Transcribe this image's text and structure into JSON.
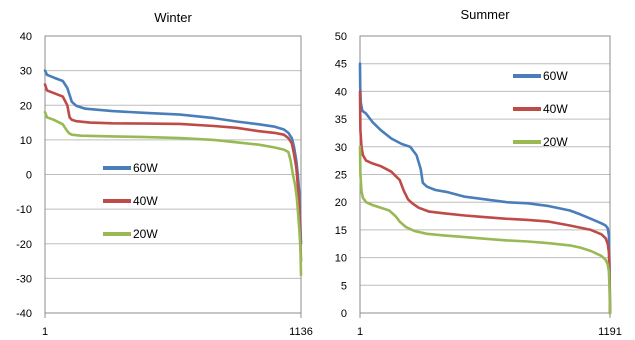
{
  "chart_data": [
    {
      "type": "line",
      "title": "Winter",
      "x_ticks": [
        "1",
        "1136"
      ],
      "y_ticks": [
        40,
        30,
        20,
        10,
        0,
        -10,
        -20,
        -30,
        -40
      ],
      "ylim": [
        -40,
        40
      ],
      "xlim": [
        1,
        1136
      ],
      "grid": true,
      "legend_placement": "left-middle",
      "series": [
        {
          "name": "60W",
          "color": "#4a7ebb",
          "x": [
            1,
            10,
            40,
            80,
            100,
            120,
            140,
            180,
            300,
            450,
            600,
            750,
            850,
            950,
            1020,
            1060,
            1080,
            1095,
            1105,
            1115,
            1122,
            1128,
            1132,
            1136
          ],
          "y": [
            30,
            28.8,
            28,
            27,
            25,
            21,
            19.8,
            19,
            18.3,
            17.8,
            17.3,
            16.3,
            15.3,
            14.5,
            13.8,
            13,
            12,
            10.5,
            8,
            4,
            0,
            -5,
            -12,
            -20
          ]
        },
        {
          "name": "40W",
          "color": "#be4b48",
          "x": [
            1,
            10,
            40,
            80,
            100,
            110,
            120,
            140,
            200,
            300,
            450,
            600,
            750,
            850,
            950,
            1020,
            1060,
            1080,
            1095,
            1105,
            1115,
            1122,
            1128,
            1132,
            1136
          ],
          "y": [
            26,
            24.3,
            23.5,
            22.5,
            20,
            16.5,
            15.8,
            15.4,
            15,
            14.8,
            14.7,
            14.6,
            14,
            13.5,
            12.5,
            12,
            11.5,
            10.5,
            9,
            6,
            2,
            -3,
            -9,
            -16,
            -25
          ]
        },
        {
          "name": "20W",
          "color": "#98b954",
          "x": [
            1,
            10,
            40,
            80,
            100,
            110,
            120,
            160,
            300,
            450,
            600,
            750,
            850,
            950,
            1020,
            1060,
            1080,
            1090,
            1100,
            1110,
            1118,
            1124,
            1130,
            1134,
            1136
          ],
          "y": [
            18,
            16.5,
            15.8,
            14.5,
            12.5,
            11.8,
            11.5,
            11.2,
            11,
            10.8,
            10.5,
            10,
            9.3,
            8.6,
            7.8,
            7.2,
            6.5,
            4,
            0,
            -3,
            -7,
            -12,
            -17,
            -22,
            -29
          ]
        }
      ]
    },
    {
      "type": "line",
      "title": "Summer",
      "x_ticks": [
        "1",
        "1191"
      ],
      "y_ticks": [
        50,
        45,
        40,
        35,
        30,
        25,
        20,
        15,
        10,
        5,
        0
      ],
      "ylim": [
        0,
        50
      ],
      "xlim": [
        1,
        1191
      ],
      "grid": true,
      "legend_placement": "top-right",
      "series": [
        {
          "name": "60W",
          "color": "#4a7ebb",
          "x": [
            1,
            2,
            5,
            12,
            30,
            60,
            100,
            150,
            200,
            240,
            270,
            290,
            300,
            320,
            360,
            420,
            500,
            600,
            700,
            800,
            900,
            1000,
            1050,
            1100,
            1150,
            1170,
            1180,
            1186,
            1189,
            1191
          ],
          "y": [
            45,
            41,
            38,
            36.5,
            36,
            34.5,
            33,
            31.5,
            30.5,
            30,
            28.5,
            26,
            23.5,
            22.8,
            22.2,
            21.8,
            21,
            20.5,
            20,
            19.8,
            19.3,
            18.5,
            17.8,
            17,
            16.2,
            15.8,
            15.3,
            14,
            8,
            0
          ]
        },
        {
          "name": "40W",
          "color": "#be4b48",
          "x": [
            1,
            3,
            8,
            15,
            30,
            60,
            100,
            150,
            190,
            210,
            230,
            250,
            280,
            330,
            400,
            500,
            600,
            700,
            800,
            900,
            1000,
            1100,
            1150,
            1170,
            1180,
            1186,
            1189,
            1191
          ],
          "y": [
            40,
            33,
            30,
            28.5,
            27.5,
            27,
            26.5,
            25.5,
            24,
            22,
            20.5,
            19.8,
            19,
            18.3,
            18,
            17.6,
            17.3,
            17,
            16.8,
            16.5,
            15.8,
            15,
            14.2,
            13.5,
            12.5,
            11,
            6,
            0
          ]
        },
        {
          "name": "20W",
          "color": "#98b954",
          "x": [
            1,
            3,
            8,
            15,
            30,
            60,
            100,
            140,
            170,
            190,
            220,
            260,
            320,
            400,
            500,
            600,
            700,
            800,
            900,
            1000,
            1050,
            1100,
            1150,
            1170,
            1180,
            1186,
            1189,
            1191
          ],
          "y": [
            30,
            25,
            22,
            20.8,
            20,
            19.5,
            19,
            18.5,
            17.5,
            16.5,
            15.5,
            14.8,
            14.3,
            14,
            13.7,
            13.4,
            13.1,
            12.9,
            12.6,
            12.2,
            11.8,
            11.2,
            10.3,
            9.6,
            8.8,
            7.5,
            4,
            0
          ]
        }
      ]
    }
  ]
}
